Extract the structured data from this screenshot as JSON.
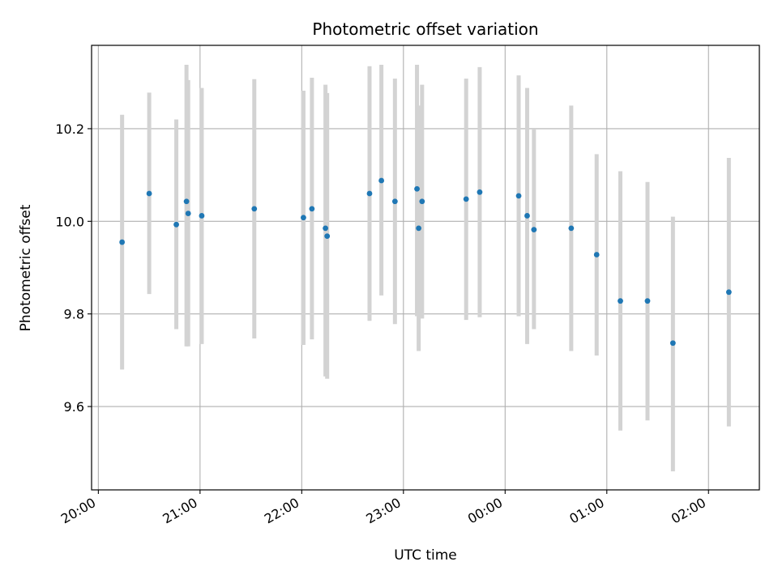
{
  "chart_data": {
    "type": "scatter",
    "title": "Photometric offset variation",
    "xlabel": "UTC time",
    "ylabel": "Photometric offset",
    "x_ticks": [
      "20:00",
      "21:00",
      "22:00",
      "23:00",
      "00:00",
      "01:00",
      "02:00"
    ],
    "y_ticks": [
      "9.6",
      "9.8",
      "10.0",
      "10.2"
    ],
    "xlim": [
      "2000-01-01T19:56",
      "2000-01-02T02:30"
    ],
    "ylim": [
      9.42,
      10.38
    ],
    "grid": true,
    "error_bar_color": "#d3d3d3",
    "point_color": "#1f77b4",
    "points": [
      {
        "t": "2000-01-01T20:14",
        "y": 9.955,
        "lo": 9.68,
        "hi": 10.23
      },
      {
        "t": "2000-01-01T20:30",
        "y": 10.06,
        "lo": 9.843,
        "hi": 10.278
      },
      {
        "t": "2000-01-01T20:46",
        "y": 9.993,
        "lo": 9.767,
        "hi": 10.22
      },
      {
        "t": "2000-01-01T20:52",
        "y": 10.043,
        "lo": 9.73,
        "hi": 10.338
      },
      {
        "t": "2000-01-01T20:53",
        "y": 10.017,
        "lo": 9.73,
        "hi": 10.305
      },
      {
        "t": "2000-01-01T21:01",
        "y": 10.012,
        "lo": 9.735,
        "hi": 10.288
      },
      {
        "t": "2000-01-01T21:32",
        "y": 10.027,
        "lo": 9.747,
        "hi": 10.307
      },
      {
        "t": "2000-01-01T22:01",
        "y": 10.008,
        "lo": 9.733,
        "hi": 10.282
      },
      {
        "t": "2000-01-01T22:06",
        "y": 10.027,
        "lo": 9.745,
        "hi": 10.31
      },
      {
        "t": "2000-01-01T22:14",
        "y": 9.985,
        "lo": 9.665,
        "hi": 10.295
      },
      {
        "t": "2000-01-01T22:15",
        "y": 9.968,
        "lo": 9.66,
        "hi": 10.277
      },
      {
        "t": "2000-01-01T22:40",
        "y": 10.06,
        "lo": 9.785,
        "hi": 10.335
      },
      {
        "t": "2000-01-01T22:47",
        "y": 10.088,
        "lo": 9.84,
        "hi": 10.338
      },
      {
        "t": "2000-01-01T22:55",
        "y": 10.043,
        "lo": 9.778,
        "hi": 10.308
      },
      {
        "t": "2000-01-01T23:08",
        "y": 10.07,
        "lo": 9.795,
        "hi": 10.338
      },
      {
        "t": "2000-01-01T23:09",
        "y": 9.985,
        "lo": 9.72,
        "hi": 10.25
      },
      {
        "t": "2000-01-01T23:11",
        "y": 10.043,
        "lo": 9.79,
        "hi": 10.295
      },
      {
        "t": "2000-01-01T23:37",
        "y": 10.048,
        "lo": 9.787,
        "hi": 10.308
      },
      {
        "t": "2000-01-01T23:45",
        "y": 10.063,
        "lo": 9.793,
        "hi": 10.333
      },
      {
        "t": "2000-01-02T00:08",
        "y": 10.055,
        "lo": 9.795,
        "hi": 10.315
      },
      {
        "t": "2000-01-02T00:13",
        "y": 10.012,
        "lo": 9.735,
        "hi": 10.288
      },
      {
        "t": "2000-01-02T00:17",
        "y": 9.982,
        "lo": 9.767,
        "hi": 10.2
      },
      {
        "t": "2000-01-02T00:39",
        "y": 9.985,
        "lo": 9.72,
        "hi": 10.25
      },
      {
        "t": "2000-01-02T00:54",
        "y": 9.928,
        "lo": 9.71,
        "hi": 10.145
      },
      {
        "t": "2000-01-02T01:08",
        "y": 9.828,
        "lo": 9.548,
        "hi": 10.108
      },
      {
        "t": "2000-01-02T01:24",
        "y": 9.828,
        "lo": 9.57,
        "hi": 10.085
      },
      {
        "t": "2000-01-02T01:39",
        "y": 9.737,
        "lo": 9.46,
        "hi": 10.01
      },
      {
        "t": "2000-01-02T02:12",
        "y": 9.847,
        "lo": 9.557,
        "hi": 10.137
      }
    ]
  }
}
